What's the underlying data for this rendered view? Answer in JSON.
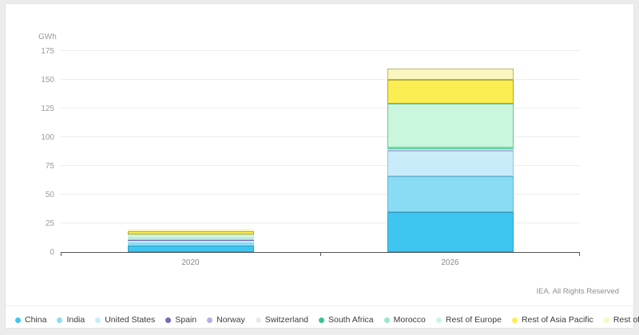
{
  "page": {
    "source_note": "IEA. All Rights Reserved"
  },
  "chart_data": {
    "type": "bar",
    "stacked": true,
    "title": "",
    "xlabel": "",
    "ylabel": "GWh",
    "ylim": [
      0,
      175
    ],
    "yticks": [
      0,
      25,
      50,
      75,
      100,
      125,
      150,
      175
    ],
    "grid": true,
    "legend_position": "bottom",
    "categories": [
      "2020",
      "2026"
    ],
    "totals": [
      20,
      159
    ],
    "series": [
      {
        "name": "China",
        "color": "#3fc6f0",
        "border": "#2f9dc4",
        "values": [
          5.8,
          35
        ]
      },
      {
        "name": "India",
        "color": "#8adcf4",
        "border": "#5fb5d4",
        "values": [
          2.3,
          31
        ]
      },
      {
        "name": "United States",
        "color": "#c9ecfa",
        "border": "#8cc6de",
        "values": [
          2.3,
          22.5
        ]
      },
      {
        "name": "Spain",
        "color": "#6f6bb5",
        "border": "#56528f",
        "values": [
          0.2,
          0.3
        ]
      },
      {
        "name": "Norway",
        "color": "#b3b1dd",
        "border": "#8c8abc",
        "values": [
          0.3,
          0.3
        ]
      },
      {
        "name": "Switzerland",
        "color": "#e9e9f2",
        "border": "#c4c4d6",
        "values": [
          1.0,
          0.4
        ]
      },
      {
        "name": "South Africa",
        "color": "#3dc48c",
        "border": "#2a9167",
        "values": [
          0.3,
          0.6
        ]
      },
      {
        "name": "Morocco",
        "color": "#96e8cb",
        "border": "#58b996",
        "values": [
          0.4,
          0.6
        ]
      },
      {
        "name": "Rest of Europe",
        "color": "#cbf6de",
        "border": "#6fbf9a",
        "values": [
          2.4,
          38.5
        ]
      },
      {
        "name": "Rest of Asia Pacific",
        "color": "#fbee53",
        "border": "#b0a433",
        "values": [
          3.4,
          20.5
        ]
      },
      {
        "name": "Rest of world",
        "color": "#faf6c0",
        "border": "#bdb566",
        "values": [
          1.6,
          10
        ]
      }
    ]
  }
}
